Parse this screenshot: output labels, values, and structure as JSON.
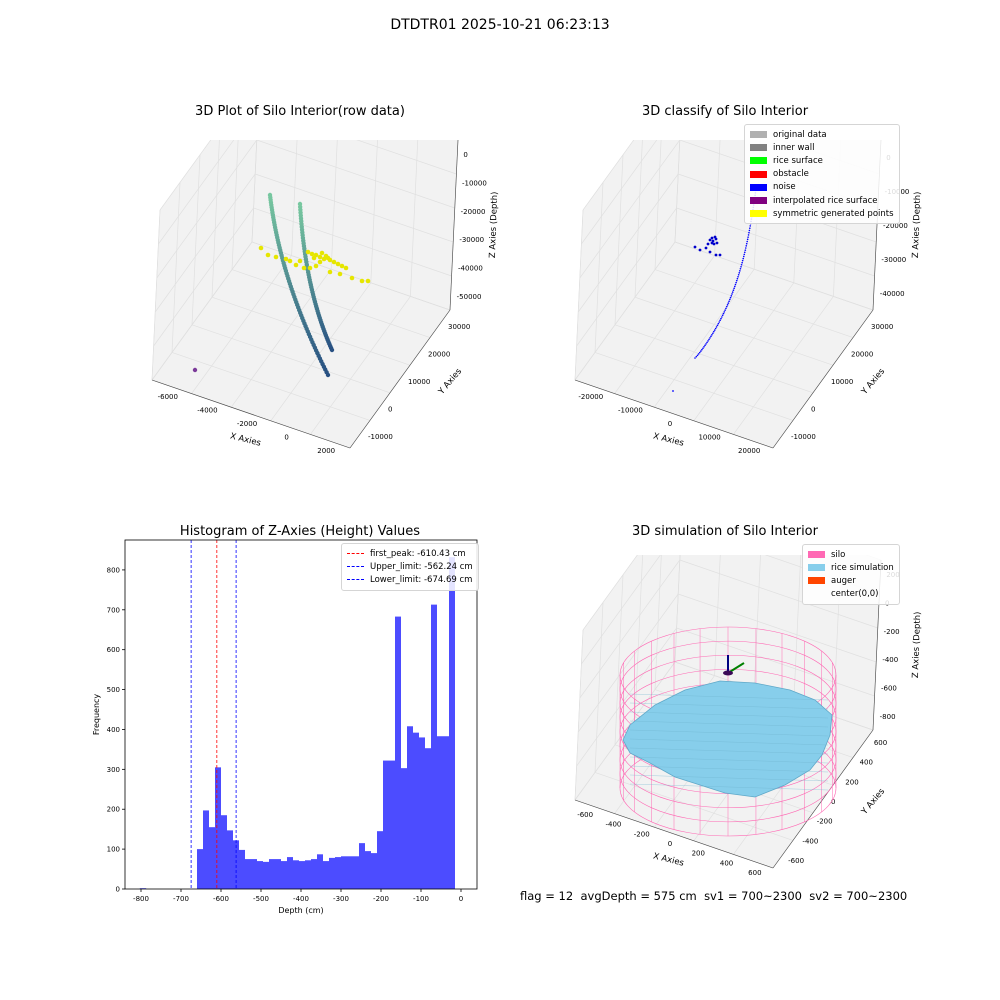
{
  "suptitle": "DTDTR01 2025-10-21 06:23:13",
  "footer": {
    "flag": "flag = 12",
    "avg_depth": "avgDepth = 575 cm",
    "sv1": "sv1 = 700~2300",
    "sv2": "sv2 = 700~2300"
  },
  "colors": {
    "bar": "#0000ff",
    "peak_line": "#ff0000",
    "limit_line": "#0000ff",
    "silo": "#ff69b4",
    "rice": "#87ceeb",
    "auger": "#ff4500",
    "pane": "#f2f2f2"
  },
  "panels": {
    "raw": {
      "title": "3D Plot of Silo Interior(row data)",
      "xlabel": "X Axies",
      "ylabel": "Y Axies",
      "zlabel": "Z Axies (Depth)",
      "x_ticks": [
        "-6000",
        "-4000",
        "-2000",
        "0",
        "2000"
      ],
      "y_ticks": [
        "-10000",
        "0",
        "10000",
        "20000",
        "30000"
      ],
      "z_ticks": [
        "0",
        "-10000",
        "-20000",
        "-30000",
        "-40000",
        "-50000"
      ]
    },
    "classify": {
      "title": "3D classify of Silo Interior",
      "xlabel": "X Axies",
      "ylabel": "Y Axies",
      "zlabel": "Z Axies (Depth)",
      "x_ticks": [
        "-20000",
        "-10000",
        "0",
        "10000",
        "20000"
      ],
      "y_ticks": [
        "-10000",
        "0",
        "10000",
        "20000",
        "30000"
      ],
      "z_ticks": [
        "0",
        "-10000",
        "-20000",
        "-30000",
        "-40000"
      ],
      "legend": [
        {
          "label": "original data",
          "color": "#b0b0b0"
        },
        {
          "label": "inner wall",
          "color": "#808080"
        },
        {
          "label": "rice surface",
          "color": "#00ff00"
        },
        {
          "label": "obstacle",
          "color": "#ff0000"
        },
        {
          "label": "noise",
          "color": "#0000ff"
        },
        {
          "label": "interpolated rice surface",
          "color": "#800080"
        },
        {
          "label": "symmetric generated points",
          "color": "#ffff00"
        }
      ]
    },
    "simulation": {
      "title": "3D simulation of Silo Interior",
      "xlabel": "X Axies",
      "ylabel": "Y Axies",
      "zlabel": "Z Axies (Depth)",
      "x_ticks": [
        "-600",
        "-400",
        "-200",
        "0",
        "200",
        "400",
        "600"
      ],
      "y_ticks": [
        "-600",
        "-400",
        "-200",
        "0",
        "200",
        "400",
        "600"
      ],
      "z_ticks": [
        "200",
        "0",
        "-200",
        "-400",
        "-600",
        "-800"
      ],
      "legend": [
        {
          "label": "silo",
          "color": "#ff69b4"
        },
        {
          "label": "rice simulation",
          "color": "#87ceeb"
        },
        {
          "label": "auger",
          "color": "#ff4500"
        },
        {
          "label": "center(0,0)",
          "color": ""
        }
      ]
    }
  },
  "chart_data": [
    {
      "type": "scatter",
      "title": "3D Plot of Silo Interior(row data)",
      "xlabel": "X Axies",
      "ylabel": "Y Axies",
      "zlabel": "Z Axies (Depth)",
      "xlim": [
        -6500,
        2500
      ],
      "ylim": [
        -12000,
        32000
      ],
      "zlim": [
        -55000,
        2000
      ]
    },
    {
      "type": "scatter",
      "title": "3D classify of Silo Interior",
      "xlabel": "X Axies",
      "ylabel": "Y Axies",
      "zlabel": "Z Axies (Depth)",
      "xlim": [
        -23000,
        23000
      ],
      "ylim": [
        -12000,
        32000
      ],
      "zlim": [
        -45000,
        2000
      ]
    },
    {
      "type": "bar",
      "title": "Histogram of Z-Axies (Height) Values",
      "xlabel": "Depth (cm)",
      "ylabel": "Frequency",
      "xlim": [
        -840,
        40
      ],
      "ylim": [
        0,
        875
      ],
      "x_ticks": [
        -800,
        -700,
        -600,
        -500,
        -400,
        -300,
        -200,
        -100,
        0
      ],
      "y_ticks": [
        0,
        100,
        200,
        300,
        400,
        500,
        600,
        700,
        800
      ],
      "bins": [
        {
          "x0": -803,
          "x1": -787,
          "value": 2
        },
        {
          "x0": -660,
          "x1": -645,
          "value": 100
        },
        {
          "x0": -645,
          "x1": -630,
          "value": 197
        },
        {
          "x0": -630,
          "x1": -615,
          "value": 155
        },
        {
          "x0": -615,
          "x1": -600,
          "value": 305
        },
        {
          "x0": -600,
          "x1": -585,
          "value": 185
        },
        {
          "x0": -585,
          "x1": -570,
          "value": 147
        },
        {
          "x0": -570,
          "x1": -555,
          "value": 122
        },
        {
          "x0": -555,
          "x1": -540,
          "value": 98
        },
        {
          "x0": -540,
          "x1": -525,
          "value": 75
        },
        {
          "x0": -525,
          "x1": -510,
          "value": 75
        },
        {
          "x0": -510,
          "x1": -495,
          "value": 70
        },
        {
          "x0": -495,
          "x1": -480,
          "value": 68
        },
        {
          "x0": -480,
          "x1": -465,
          "value": 75
        },
        {
          "x0": -465,
          "x1": -450,
          "value": 75
        },
        {
          "x0": -450,
          "x1": -435,
          "value": 70
        },
        {
          "x0": -435,
          "x1": -420,
          "value": 80
        },
        {
          "x0": -420,
          "x1": -405,
          "value": 72
        },
        {
          "x0": -405,
          "x1": -390,
          "value": 70
        },
        {
          "x0": -390,
          "x1": -375,
          "value": 72
        },
        {
          "x0": -375,
          "x1": -360,
          "value": 75
        },
        {
          "x0": -360,
          "x1": -345,
          "value": 87
        },
        {
          "x0": -345,
          "x1": -330,
          "value": 70
        },
        {
          "x0": -330,
          "x1": -315,
          "value": 78
        },
        {
          "x0": -315,
          "x1": -300,
          "value": 80
        },
        {
          "x0": -300,
          "x1": -285,
          "value": 82
        },
        {
          "x0": -285,
          "x1": -270,
          "value": 82
        },
        {
          "x0": -270,
          "x1": -255,
          "value": 82
        },
        {
          "x0": -255,
          "x1": -240,
          "value": 115
        },
        {
          "x0": -240,
          "x1": -225,
          "value": 95
        },
        {
          "x0": -225,
          "x1": -210,
          "value": 90
        },
        {
          "x0": -210,
          "x1": -195,
          "value": 145
        },
        {
          "x0": -195,
          "x1": -180,
          "value": 322
        },
        {
          "x0": -180,
          "x1": -165,
          "value": 322
        },
        {
          "x0": -165,
          "x1": -150,
          "value": 683
        },
        {
          "x0": -150,
          "x1": -135,
          "value": 303
        },
        {
          "x0": -135,
          "x1": -120,
          "value": 408
        },
        {
          "x0": -120,
          "x1": -105,
          "value": 392
        },
        {
          "x0": -105,
          "x1": -90,
          "value": 380
        },
        {
          "x0": -90,
          "x1": -75,
          "value": 353
        },
        {
          "x0": -75,
          "x1": -60,
          "value": 713
        },
        {
          "x0": -60,
          "x1": -45,
          "value": 383
        },
        {
          "x0": -45,
          "x1": -30,
          "value": 383
        },
        {
          "x0": -30,
          "x1": -15,
          "value": 832
        }
      ],
      "vlines": [
        {
          "name": "first_peak: -610.43 cm",
          "x": -610.43,
          "color": "#ff0000"
        },
        {
          "name": "Upper_limit: -562.24 cm",
          "x": -562.24,
          "color": "#0000ff"
        },
        {
          "name": "Lower_limit: -674.69 cm",
          "x": -674.69,
          "color": "#0000ff"
        }
      ],
      "legend": "top-right"
    },
    {
      "type": "scatter",
      "title": "3D simulation of Silo Interior",
      "xlabel": "X Axies",
      "ylabel": "Y Axies",
      "zlabel": "Z Axies (Depth)",
      "xlim": [
        -650,
        650
      ],
      "ylim": [
        -650,
        650
      ],
      "zlim": [
        -900,
        300
      ],
      "avg_depth": -575
    }
  ]
}
